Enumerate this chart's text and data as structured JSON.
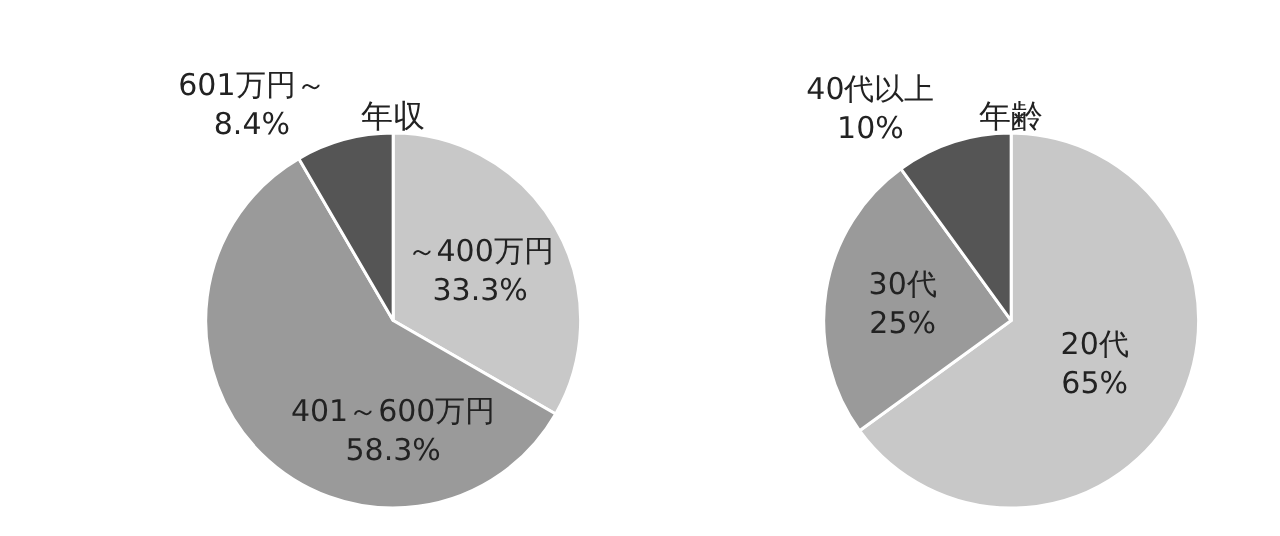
{
  "chart_data": [
    {
      "type": "pie",
      "title": "年収",
      "categories": [
        "～400万円",
        "401～600万円",
        "601万円～"
      ],
      "values": [
        33.3,
        58.3,
        8.4
      ],
      "value_labels": [
        "33.3%",
        "58.3%",
        "8.4%"
      ],
      "colors": [
        "#c8c8c8",
        "#9a9a9a",
        "#555555"
      ],
      "legend": false
    },
    {
      "type": "pie",
      "title": "年齢",
      "categories": [
        "20代",
        "30代",
        "40代以上"
      ],
      "values": [
        65,
        25,
        10
      ],
      "value_labels": [
        "65%",
        "25%",
        "10%"
      ],
      "colors": [
        "#c8c8c8",
        "#9a9a9a",
        "#555555"
      ],
      "legend": false
    }
  ]
}
